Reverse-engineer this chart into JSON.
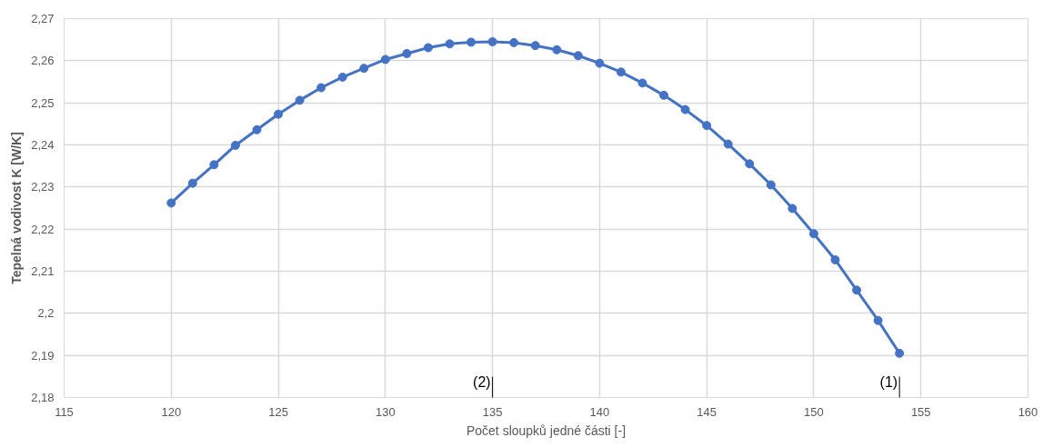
{
  "chart_data": {
    "type": "line",
    "xlabel": "Počet sloupků jedné části [-]",
    "ylabel": "Tepelná vodivost K [W/K]",
    "x": [
      120,
      121,
      122,
      123,
      124,
      125,
      126,
      127,
      128,
      129,
      130,
      131,
      132,
      133,
      134,
      135,
      136,
      137,
      138,
      139,
      140,
      141,
      142,
      143,
      144,
      145,
      146,
      147,
      148,
      149,
      150,
      151,
      152,
      153,
      154
    ],
    "series": [
      {
        "color": "#4472c4",
        "values": [
          2.2262,
          2.2309,
          2.2353,
          2.2399,
          2.2436,
          2.2473,
          2.2506,
          2.2536,
          2.2561,
          2.2582,
          2.2603,
          2.2617,
          2.2631,
          2.264,
          2.2644,
          2.2645,
          2.2643,
          2.2636,
          2.2626,
          2.2612,
          2.2594,
          2.2573,
          2.2547,
          2.2518,
          2.2484,
          2.2446,
          2.2402,
          2.2355,
          2.2305,
          2.2249,
          2.2189,
          2.2127,
          2.2055,
          2.1983,
          2.1905
        ]
      }
    ],
    "xlim": [
      115,
      160
    ],
    "xticks": [
      115,
      120,
      125,
      130,
      135,
      140,
      145,
      150,
      155,
      160
    ],
    "ylim": [
      2.18,
      2.27
    ],
    "yticks": [
      {
        "value": 2.18,
        "label": "2,18"
      },
      {
        "value": 2.19,
        "label": "2,19"
      },
      {
        "value": 2.2,
        "label": "2,2"
      },
      {
        "value": 2.21,
        "label": "2,21"
      },
      {
        "value": 2.22,
        "label": "2,22"
      },
      {
        "value": 2.23,
        "label": "2,23"
      },
      {
        "value": 2.24,
        "label": "2,24"
      },
      {
        "value": 2.25,
        "label": "2,25"
      },
      {
        "value": 2.26,
        "label": "2,26"
      },
      {
        "value": 2.27,
        "label": "2,27"
      }
    ],
    "annotations": [
      "(2)",
      "(1)"
    ],
    "grid": true,
    "marker": "circle",
    "line_style": "solid"
  }
}
